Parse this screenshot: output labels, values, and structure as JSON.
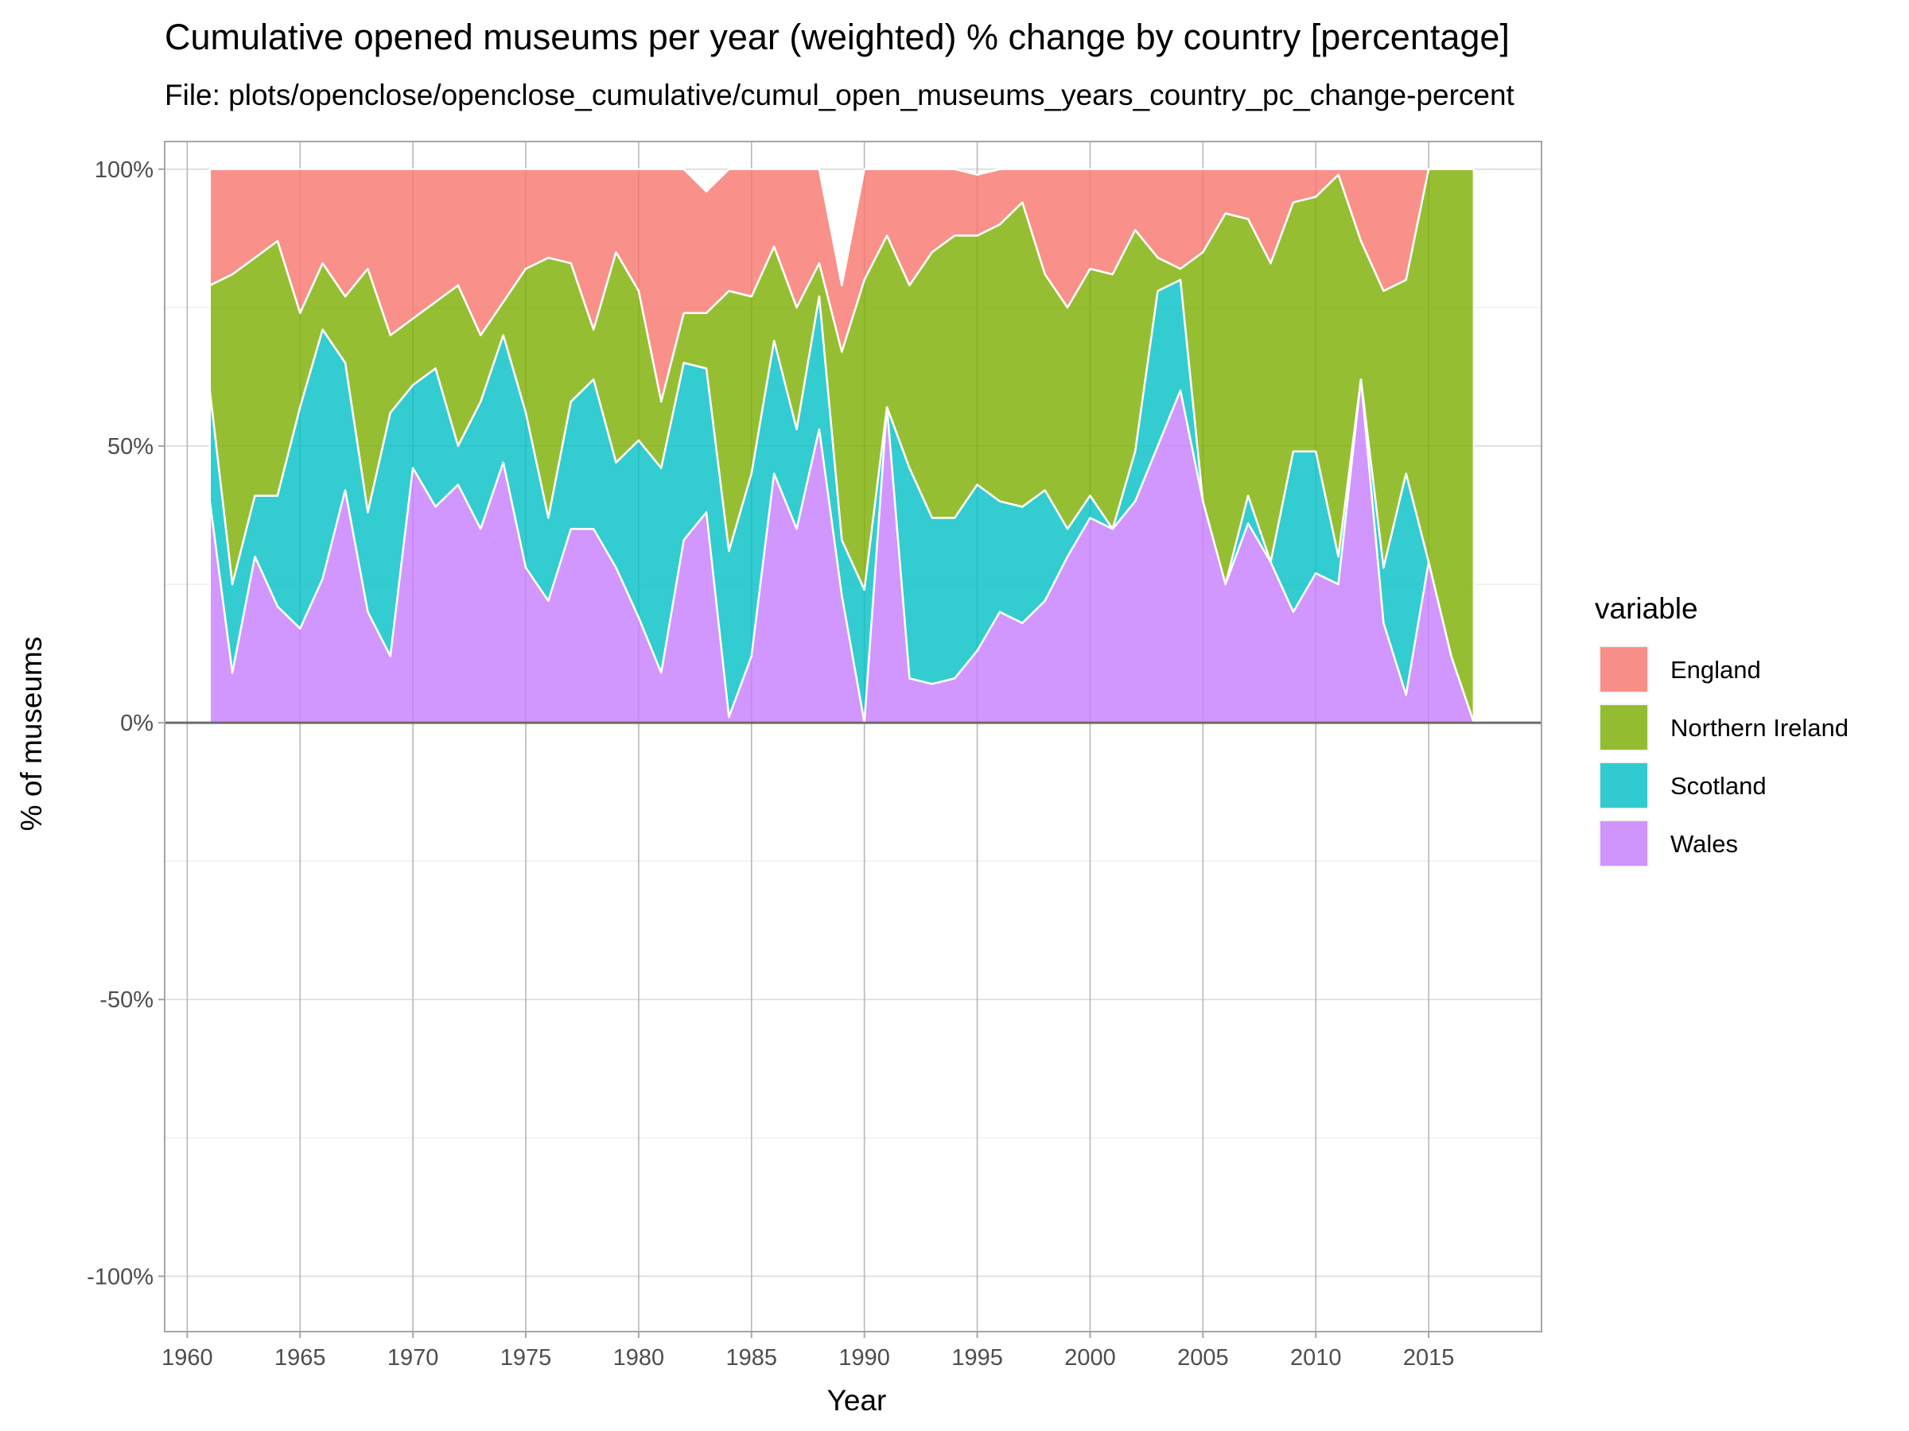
{
  "chart_data": {
    "type": "area",
    "title": "Cumulative opened museums per year (weighted) % change by country [percentage]",
    "subtitle": "File: plots/openclose/openclose_cumulative/cumul_open_museums_years_country_pc_change-percent",
    "xlabel": "Year",
    "ylabel": "% of museums",
    "xlim": [
      1959,
      2020
    ],
    "ylim": [
      -110,
      105
    ],
    "x_ticks": [
      1960,
      1965,
      1970,
      1975,
      1980,
      1985,
      1990,
      1995,
      2000,
      2005,
      2010,
      2015
    ],
    "y_ticks": [
      {
        "value": 100,
        "label": "100%"
      },
      {
        "value": 50,
        "label": "50%"
      },
      {
        "value": 0,
        "label": "0%"
      },
      {
        "value": -50,
        "label": "-50%"
      },
      {
        "value": -100,
        "label": "-100%"
      }
    ],
    "grid": true,
    "stacked": true,
    "legend": {
      "title": "variable",
      "position": "right"
    },
    "x": [
      1961,
      1962,
      1963,
      1964,
      1965,
      1966,
      1967,
      1968,
      1969,
      1970,
      1971,
      1972,
      1973,
      1974,
      1975,
      1976,
      1977,
      1978,
      1979,
      1980,
      1981,
      1982,
      1983,
      1984,
      1985,
      1986,
      1987,
      1988,
      1989,
      1990,
      1991,
      1992,
      1993,
      1994,
      1995,
      1996,
      1997,
      1998,
      1999,
      2000,
      2001,
      2002,
      2003,
      2004,
      2005,
      2006,
      2007,
      2008,
      2009,
      2010,
      2011,
      2012,
      2013,
      2014,
      2015,
      2016,
      2017
    ],
    "series": [
      {
        "name": "Wales",
        "color": "#C77CFF",
        "values": [
          40,
          9,
          30,
          21,
          17,
          26,
          42,
          20,
          12,
          46,
          39,
          43,
          35,
          47,
          28,
          22,
          35,
          35,
          28,
          19,
          9,
          33,
          38,
          1,
          12,
          45,
          35,
          53,
          23,
          0,
          57,
          8,
          7,
          8,
          13,
          20,
          18,
          22,
          30,
          37,
          35,
          40,
          50,
          60,
          40,
          25,
          36,
          29,
          20,
          27,
          25,
          62,
          18,
          5,
          29,
          12,
          0
        ]
      },
      {
        "name": "Scotland",
        "color": "#00BFC4",
        "values": [
          20,
          16,
          11,
          20,
          40,
          45,
          23,
          18,
          44,
          15,
          25,
          7,
          23,
          23,
          28,
          15,
          23,
          27,
          19,
          32,
          37,
          32,
          26,
          30,
          33,
          24,
          18,
          24,
          10,
          24,
          0,
          38,
          30,
          29,
          30,
          20,
          21,
          20,
          5,
          4,
          0,
          9,
          28,
          20,
          0,
          0,
          5,
          0,
          29,
          22,
          5,
          0,
          10,
          40,
          0,
          0,
          0
        ]
      },
      {
        "name": "Northern Ireland",
        "color": "#7CAE00",
        "values": [
          19,
          56,
          43,
          46,
          17,
          12,
          12,
          44,
          14,
          12,
          12,
          29,
          12,
          6,
          26,
          47,
          25,
          9,
          38,
          27,
          12,
          9,
          10,
          47,
          32,
          17,
          22,
          6,
          34,
          56,
          31,
          33,
          48,
          51,
          45,
          50,
          55,
          39,
          40,
          41,
          46,
          40,
          6,
          2,
          45,
          67,
          50,
          54,
          45,
          46,
          69,
          25,
          50,
          35,
          71,
          88,
          100
        ]
      },
      {
        "name": "England",
        "color": "#F8766D",
        "values": [
          21,
          19,
          16,
          13,
          26,
          17,
          23,
          18,
          30,
          27,
          24,
          21,
          30,
          24,
          18,
          16,
          17,
          29,
          15,
          22,
          42,
          26,
          22,
          22,
          23,
          14,
          25,
          17,
          12,
          20,
          12,
          21,
          15,
          12,
          11,
          10,
          6,
          19,
          25,
          18,
          19,
          11,
          16,
          18,
          15,
          8,
          9,
          17,
          6,
          5,
          1,
          13,
          22,
          20,
          0,
          0,
          0
        ]
      }
    ],
    "render_order": [
      "England",
      "Northern Ireland",
      "Scotland",
      "Wales"
    ]
  }
}
